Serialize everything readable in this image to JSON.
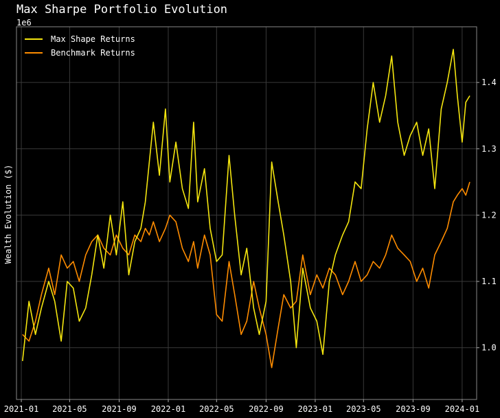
{
  "chart_data": {
    "type": "line",
    "title": "Max Sharpe Portfolio Evolution",
    "ylabel": "Wealth Evolution ($)",
    "xlabel": "",
    "y_offset_label": "1e6",
    "y_axis_side": "right",
    "grid": true,
    "legend_position": "top-left",
    "xlim": [
      "2020-12-20",
      "2024-02-06"
    ],
    "ylim": [
      0.922,
      1.484
    ],
    "x_ticks": [
      "2021-01",
      "2021-05",
      "2021-09",
      "2022-01",
      "2022-05",
      "2022-09",
      "2023-01",
      "2023-05",
      "2023-09",
      "2024-01"
    ],
    "y_ticks": [
      1.0,
      1.1,
      1.2,
      1.3,
      1.4
    ],
    "series": [
      {
        "name": "Max Shape Returns",
        "color": "#f5e60f",
        "x": [
          "2021-01-04",
          "2021-01-20",
          "2021-02-05",
          "2021-02-20",
          "2021-03-10",
          "2021-03-25",
          "2021-04-10",
          "2021-04-25",
          "2021-05-10",
          "2021-05-25",
          "2021-06-10",
          "2021-06-25",
          "2021-07-10",
          "2021-07-25",
          "2021-08-10",
          "2021-08-25",
          "2021-09-10",
          "2021-09-25",
          "2021-10-10",
          "2021-10-25",
          "2021-11-05",
          "2021-11-15",
          "2021-11-25",
          "2021-12-10",
          "2021-12-25",
          "2022-01-05",
          "2022-01-20",
          "2022-02-05",
          "2022-02-20",
          "2022-03-05",
          "2022-03-15",
          "2022-04-01",
          "2022-04-15",
          "2022-05-01",
          "2022-05-15",
          "2022-06-01",
          "2022-06-15",
          "2022-07-01",
          "2022-07-15",
          "2022-08-01",
          "2022-08-15",
          "2022-09-01",
          "2022-09-15",
          "2022-10-01",
          "2022-10-15",
          "2022-11-01",
          "2022-11-15",
          "2022-12-01",
          "2022-12-20",
          "2023-01-05",
          "2023-01-20",
          "2023-02-05",
          "2023-02-20",
          "2023-03-10",
          "2023-03-25",
          "2023-04-10",
          "2023-04-25",
          "2023-05-10",
          "2023-05-25",
          "2023-06-10",
          "2023-06-25",
          "2023-07-10",
          "2023-07-25",
          "2023-08-10",
          "2023-08-25",
          "2023-09-10",
          "2023-09-25",
          "2023-10-10",
          "2023-10-25",
          "2023-11-10",
          "2023-11-25",
          "2023-12-10",
          "2023-12-20",
          "2024-01-01",
          "2024-01-10",
          "2024-01-20"
        ],
        "values": [
          0.98,
          1.07,
          1.02,
          1.06,
          1.1,
          1.07,
          1.01,
          1.1,
          1.09,
          1.04,
          1.06,
          1.11,
          1.17,
          1.12,
          1.2,
          1.14,
          1.22,
          1.11,
          1.16,
          1.18,
          1.22,
          1.28,
          1.34,
          1.26,
          1.36,
          1.25,
          1.31,
          1.24,
          1.21,
          1.34,
          1.22,
          1.27,
          1.18,
          1.13,
          1.14,
          1.29,
          1.2,
          1.11,
          1.15,
          1.06,
          1.02,
          1.07,
          1.28,
          1.22,
          1.17,
          1.1,
          1.0,
          1.12,
          1.06,
          1.04,
          0.99,
          1.1,
          1.14,
          1.17,
          1.19,
          1.25,
          1.24,
          1.33,
          1.4,
          1.34,
          1.38,
          1.44,
          1.34,
          1.29,
          1.32,
          1.34,
          1.29,
          1.33,
          1.24,
          1.36,
          1.4,
          1.45,
          1.38,
          1.31,
          1.37,
          1.38
        ]
      },
      {
        "name": "Benchmark Returns",
        "color": "#ff8c00",
        "x": [
          "2021-01-04",
          "2021-01-20",
          "2021-02-05",
          "2021-02-20",
          "2021-03-10",
          "2021-03-25",
          "2021-04-10",
          "2021-04-25",
          "2021-05-10",
          "2021-05-25",
          "2021-06-10",
          "2021-06-25",
          "2021-07-10",
          "2021-07-25",
          "2021-08-10",
          "2021-08-25",
          "2021-09-10",
          "2021-09-25",
          "2021-10-10",
          "2021-10-25",
          "2021-11-05",
          "2021-11-15",
          "2021-11-25",
          "2021-12-10",
          "2021-12-25",
          "2022-01-05",
          "2022-01-20",
          "2022-02-05",
          "2022-02-20",
          "2022-03-05",
          "2022-03-15",
          "2022-04-01",
          "2022-04-15",
          "2022-05-01",
          "2022-05-15",
          "2022-06-01",
          "2022-06-15",
          "2022-07-01",
          "2022-07-15",
          "2022-08-01",
          "2022-08-15",
          "2022-09-01",
          "2022-09-15",
          "2022-10-01",
          "2022-10-15",
          "2022-11-01",
          "2022-11-15",
          "2022-12-01",
          "2022-12-20",
          "2023-01-05",
          "2023-01-20",
          "2023-02-05",
          "2023-02-20",
          "2023-03-10",
          "2023-03-25",
          "2023-04-10",
          "2023-04-25",
          "2023-05-10",
          "2023-05-25",
          "2023-06-10",
          "2023-06-25",
          "2023-07-10",
          "2023-07-25",
          "2023-08-10",
          "2023-08-25",
          "2023-09-10",
          "2023-09-25",
          "2023-10-10",
          "2023-10-25",
          "2023-11-10",
          "2023-11-25",
          "2023-12-10",
          "2023-12-20",
          "2024-01-01",
          "2024-01-10",
          "2024-01-20"
        ],
        "values": [
          1.02,
          1.01,
          1.04,
          1.08,
          1.12,
          1.08,
          1.14,
          1.12,
          1.13,
          1.1,
          1.14,
          1.16,
          1.17,
          1.15,
          1.14,
          1.17,
          1.15,
          1.14,
          1.17,
          1.16,
          1.18,
          1.17,
          1.19,
          1.16,
          1.18,
          1.2,
          1.19,
          1.15,
          1.13,
          1.16,
          1.12,
          1.17,
          1.14,
          1.05,
          1.04,
          1.13,
          1.08,
          1.02,
          1.04,
          1.1,
          1.06,
          1.02,
          0.97,
          1.03,
          1.08,
          1.06,
          1.07,
          1.14,
          1.08,
          1.11,
          1.09,
          1.12,
          1.11,
          1.08,
          1.1,
          1.13,
          1.1,
          1.11,
          1.13,
          1.12,
          1.14,
          1.17,
          1.15,
          1.14,
          1.13,
          1.1,
          1.12,
          1.09,
          1.14,
          1.16,
          1.18,
          1.22,
          1.23,
          1.24,
          1.23,
          1.25
        ]
      }
    ]
  }
}
